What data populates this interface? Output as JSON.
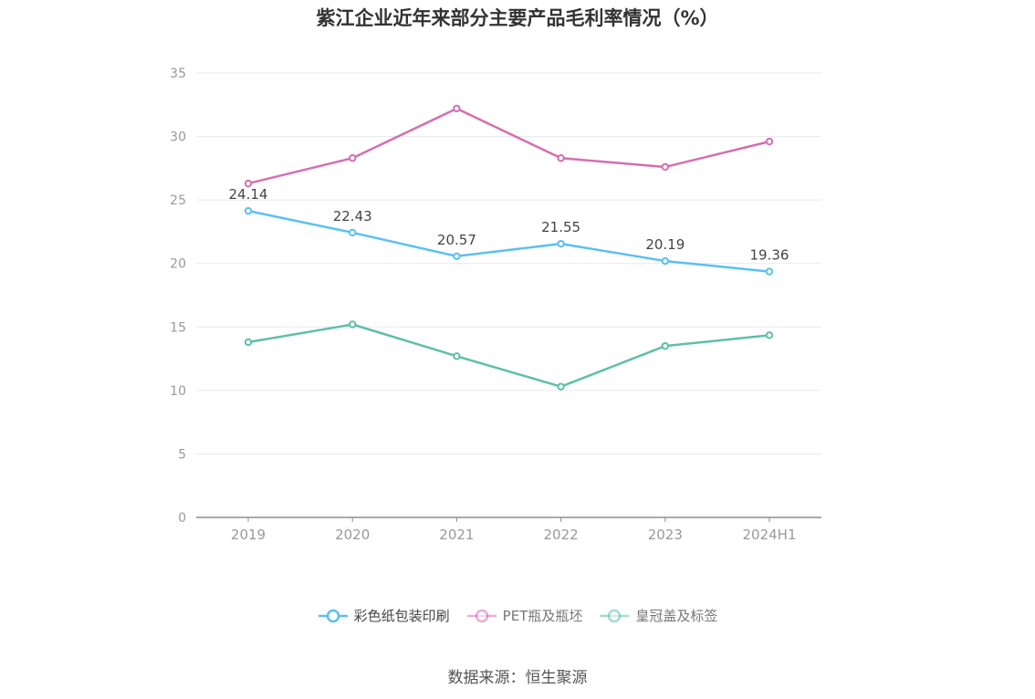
{
  "chart_data": {
    "type": "line",
    "title": "紫江企业近年来部分主要产品毛利率情况（%）",
    "categories": [
      "2019",
      "2020",
      "2021",
      "2022",
      "2023",
      "2024H1"
    ],
    "ylim": [
      0,
      35
    ],
    "yticks": [
      0,
      5,
      10,
      15,
      20,
      25,
      30,
      35
    ],
    "grid": true,
    "legend_position": "bottom",
    "series": [
      {
        "name": "彩色纸包装印刷",
        "color": "#5bc0f0",
        "values": [
          24.14,
          22.43,
          20.57,
          21.55,
          20.19,
          19.36
        ],
        "show_labels": true,
        "labels": [
          "24.14",
          "22.43",
          "20.57",
          "21.55",
          "20.19",
          "19.36"
        ]
      },
      {
        "name": "PET瓶及瓶坯",
        "color": "#d46eb3",
        "values": [
          26.3,
          28.3,
          32.2,
          28.3,
          27.6,
          29.6
        ],
        "show_labels": false
      },
      {
        "name": "皇冠盖及标签",
        "color": "#5fbfa8",
        "values": [
          13.8,
          15.2,
          12.7,
          10.3,
          13.5,
          14.35
        ],
        "show_labels": false
      }
    ]
  },
  "source": "数据来源：恒生聚源"
}
